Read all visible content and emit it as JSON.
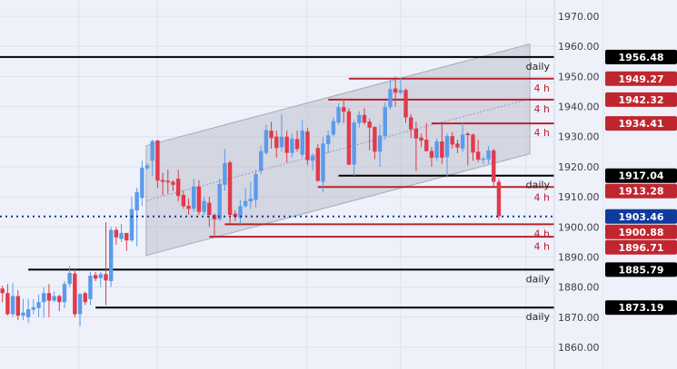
{
  "chart_data": {
    "type": "candlestick",
    "title": "",
    "ylim": [
      1855,
      1972
    ],
    "y_ticks": [
      "1970.00",
      "1960.00",
      "1950.00",
      "1940.00",
      "1930.00",
      "1920.00",
      "1910.00",
      "1900.00",
      "1890.00",
      "1880.00",
      "1870.00",
      "1860.00"
    ],
    "y_tick_values": [
      1970,
      1960,
      1950,
      1940,
      1930,
      1920,
      1910,
      1900,
      1890,
      1880,
      1870,
      1860
    ],
    "grid": true,
    "colors": {
      "up": "#5b9bea",
      "down": "#e03a4c",
      "daily": "#000000",
      "four_hour": "#b3242f",
      "current": "#0f3a9e",
      "channel": "#b9bcc8",
      "background": "#eef1fa"
    },
    "candles_ohlc": [
      [
        1879.5,
        1880.5,
        1875,
        1878
      ],
      [
        1878,
        1881,
        1870.5,
        1871
      ],
      [
        1871,
        1881.3,
        1870,
        1877
      ],
      [
        1877,
        1879,
        1869,
        1870.5
      ],
      [
        1870.5,
        1876,
        1869,
        1871.5
      ],
      [
        1870,
        1876,
        1868,
        1872.6
      ],
      [
        1872.5,
        1876,
        1871,
        1873.3
      ],
      [
        1873,
        1877.5,
        1870,
        1875
      ],
      [
        1875,
        1880,
        1870,
        1878
      ],
      [
        1878,
        1881,
        1870,
        1875.5
      ],
      [
        1875.5,
        1878.5,
        1875,
        1877
      ],
      [
        1877,
        1877.5,
        1872,
        1875
      ],
      [
        1875,
        1882,
        1873,
        1881
      ],
      [
        1881,
        1887,
        1880,
        1884.7
      ],
      [
        1884.5,
        1886,
        1870,
        1871
      ],
      [
        1871,
        1878,
        1867,
        1877.7
      ],
      [
        1878,
        1878.5,
        1874,
        1875
      ],
      [
        1876,
        1885,
        1874,
        1883.8
      ],
      [
        1884,
        1885,
        1882,
        1882.8
      ],
      [
        1883,
        1885,
        1880,
        1884.3
      ],
      [
        1884.3,
        1901.5,
        1874,
        1882.2
      ],
      [
        1882,
        1900,
        1880,
        1899
      ],
      [
        1899,
        1900,
        1894,
        1896.5
      ],
      [
        1896,
        1901,
        1895,
        1898
      ],
      [
        1898,
        1898,
        1892,
        1895.5
      ],
      [
        1895.5,
        1910,
        1895,
        1905.9
      ],
      [
        1905.5,
        1913,
        1893.5,
        1911.6
      ],
      [
        1909.6,
        1922,
        1907,
        1919.7
      ],
      [
        1919.5,
        1921,
        1919,
        1920.4
      ],
      [
        1922,
        1929,
        1917,
        1928.5
      ],
      [
        1928.7,
        1929,
        1913,
        1915.4
      ],
      [
        1915.6,
        1918,
        1910.5,
        1915
      ],
      [
        1915.3,
        1919,
        1911,
        1914.8
      ],
      [
        1915,
        1915.5,
        1912,
        1914
      ],
      [
        1916,
        1919,
        1908.5,
        1910.3
      ],
      [
        1910.6,
        1912,
        1906,
        1906.9
      ],
      [
        1907,
        1909.5,
        1904,
        1906
      ],
      [
        1906,
        1916,
        1905,
        1913.4
      ],
      [
        1913.4,
        1915.5,
        1904,
        1905
      ],
      [
        1905,
        1910,
        1904,
        1908.6
      ],
      [
        1908,
        1910,
        1900,
        1904
      ],
      [
        1904,
        1904.5,
        1897,
        1902.5
      ],
      [
        1902.5,
        1916,
        1902,
        1914.3
      ],
      [
        1914,
        1926,
        1912,
        1921.2
      ],
      [
        1921.4,
        1922,
        1901,
        1904
      ],
      [
        1904.4,
        1905.5,
        1902,
        1903.4
      ],
      [
        1903,
        1909,
        1901,
        1906.9
      ],
      [
        1906.9,
        1913,
        1906.5,
        1908.6
      ],
      [
        1908.5,
        1915,
        1906,
        1909.4
      ],
      [
        1909,
        1919,
        1906.5,
        1917.5
      ],
      [
        1918.6,
        1927,
        1917.5,
        1925.2
      ],
      [
        1924.6,
        1934,
        1924,
        1932.2
      ],
      [
        1932,
        1935,
        1926,
        1929.5
      ],
      [
        1930,
        1932,
        1923,
        1926.2
      ],
      [
        1926.5,
        1937.5,
        1925,
        1930
      ],
      [
        1930,
        1932,
        1921.5,
        1924.6
      ],
      [
        1924.6,
        1931,
        1923,
        1929.4
      ],
      [
        1929.2,
        1932,
        1925,
        1925.9
      ],
      [
        1924,
        1935.5,
        1923,
        1932
      ],
      [
        1931.7,
        1933,
        1920.5,
        1922.2
      ],
      [
        1922,
        1924.5,
        1918.7,
        1923.7
      ],
      [
        1926.2,
        1927.5,
        1915,
        1915.3
      ],
      [
        1915,
        1930,
        1911.5,
        1927.7
      ],
      [
        1927.5,
        1932,
        1924.5,
        1930.4
      ],
      [
        1930.7,
        1936.5,
        1930,
        1935.2
      ],
      [
        1934.7,
        1941,
        1934,
        1939.8
      ],
      [
        1939.8,
        1942.5,
        1934.5,
        1938.3
      ],
      [
        1938.4,
        1939.5,
        1920.5,
        1920.7
      ],
      [
        1920.7,
        1935.5,
        1917,
        1934.7
      ],
      [
        1934.5,
        1938.5,
        1933,
        1937.2
      ],
      [
        1937.2,
        1939.5,
        1934,
        1934.7
      ],
      [
        1935,
        1936,
        1925.5,
        1933
      ],
      [
        1933.2,
        1933.5,
        1922.5,
        1925
      ],
      [
        1925,
        1934,
        1920,
        1930.4
      ],
      [
        1930.2,
        1941.5,
        1929,
        1939.8
      ],
      [
        1939.8,
        1949,
        1939,
        1945.8
      ],
      [
        1946,
        1950,
        1940,
        1944.6
      ],
      [
        1944.6,
        1949.5,
        1944,
        1945.5
      ],
      [
        1945.5,
        1946,
        1934.5,
        1936.4
      ],
      [
        1936.4,
        1937.5,
        1929.5,
        1932.4
      ],
      [
        1932.7,
        1935,
        1918.5,
        1929.4
      ],
      [
        1929.7,
        1931,
        1926.5,
        1928.7
      ],
      [
        1929,
        1934.5,
        1925,
        1925.2
      ],
      [
        1925.2,
        1926.5,
        1920,
        1923
      ],
      [
        1923,
        1929.5,
        1922,
        1928.4
      ],
      [
        1928.4,
        1934.5,
        1921,
        1923
      ],
      [
        1923.2,
        1931,
        1916.5,
        1930.2
      ],
      [
        1930.2,
        1931.5,
        1926,
        1927.4
      ],
      [
        1927.7,
        1929,
        1924.5,
        1926.4
      ],
      [
        1926,
        1934.5,
        1925,
        1930.7
      ],
      [
        1931,
        1931.5,
        1920.5,
        1930.5
      ],
      [
        1930.7,
        1931,
        1922,
        1924.7
      ],
      [
        1925,
        1929,
        1921.5,
        1922.4
      ],
      [
        1922.4,
        1923.5,
        1921,
        1922.7
      ],
      [
        1922.4,
        1927,
        1921,
        1925.4
      ],
      [
        1925.4,
        1926,
        1913.5,
        1915
      ],
      [
        1915,
        1916,
        1902.3,
        1903.6
      ]
    ],
    "channel": {
      "start_bar": 27.8,
      "end_bar": 102,
      "upper": [
        1927,
        1960.8
      ],
      "lower": [
        1890.5,
        1924.3
      ]
    },
    "levels": [
      {
        "price": 1956.48,
        "tag": "1956.48",
        "label": "daily",
        "kind": "daily",
        "start_bar": -1
      },
      {
        "price": 1949.27,
        "tag": "1949.27",
        "label": "4 h",
        "kind": "four_hour",
        "start_bar": 67
      },
      {
        "price": 1942.32,
        "tag": "1942.32",
        "label": "4 h",
        "kind": "four_hour",
        "start_bar": 63
      },
      {
        "price": 1934.41,
        "tag": "1934.41",
        "label": "4 h",
        "kind": "four_hour",
        "start_bar": 83
      },
      {
        "price": 1917.04,
        "tag": "1917.04",
        "label": "daily",
        "kind": "daily",
        "start_bar": 65
      },
      {
        "price": 1913.28,
        "tag": "1913.28",
        "label": "4 h",
        "kind": "four_hour",
        "start_bar": 61
      },
      {
        "price": 1900.88,
        "tag": "1900.88",
        "label": "4 h",
        "kind": "four_hour",
        "start_bar": 43
      },
      {
        "price": 1896.71,
        "tag": "1896.71",
        "label": "4 h",
        "kind": "four_hour",
        "start_bar": 40
      },
      {
        "price": 1885.79,
        "tag": "1885.79",
        "label": "daily",
        "kind": "daily",
        "start_bar": 5
      },
      {
        "price": 1873.19,
        "tag": "1873.19",
        "label": "daily",
        "kind": "daily",
        "start_bar": 18
      }
    ],
    "current_price": {
      "price": 1903.46,
      "tag": "1903.46"
    }
  }
}
